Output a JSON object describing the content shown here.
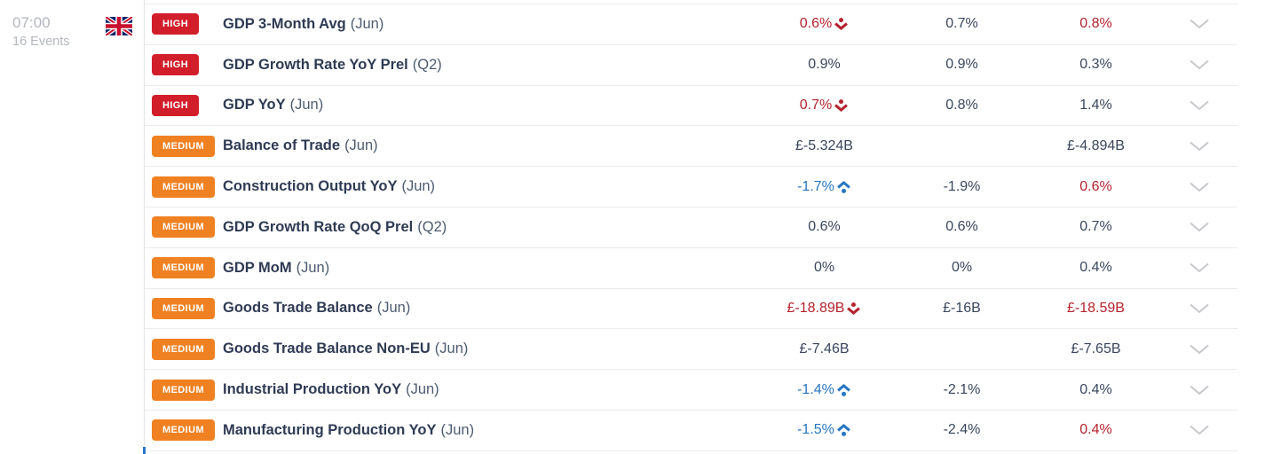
{
  "time_group": {
    "time": "07:00",
    "events_count": "16 Events",
    "country": "United Kingdom"
  },
  "colors": {
    "high_badge": "#d21e2b",
    "medium_badge": "#f08122",
    "value_dark": "#39465e",
    "value_red": "#b5232e",
    "value_blue": "#2776c4",
    "time_gray": "#b2b6be",
    "row_border": "#ececec",
    "accent_blue": "#2776c4",
    "flag_blue": "#012169",
    "flag_red": "#C8102E"
  },
  "rows": [
    {
      "importance": "HIGH",
      "name": "GDP 3-Month Avg",
      "period": "(Jun)",
      "actual": "0.6%",
      "actual_color": "red",
      "actual_indicator": "down",
      "consensus": "0.7%",
      "consensus_color": "dark",
      "previous": "0.8%",
      "previous_color": "red"
    },
    {
      "importance": "HIGH",
      "name": "GDP Growth Rate YoY Prel",
      "period": "(Q2)",
      "actual": "0.9%",
      "actual_color": "dark",
      "actual_indicator": "",
      "consensus": "0.9%",
      "consensus_color": "dark",
      "previous": "0.3%",
      "previous_color": "dark"
    },
    {
      "importance": "HIGH",
      "name": "GDP YoY",
      "period": "(Jun)",
      "actual": "0.7%",
      "actual_color": "red",
      "actual_indicator": "down",
      "consensus": "0.8%",
      "consensus_color": "dark",
      "previous": "1.4%",
      "previous_color": "dark"
    },
    {
      "importance": "MEDIUM",
      "name": "Balance of Trade",
      "period": "(Jun)",
      "actual": "£-5.324B",
      "actual_color": "dark",
      "actual_indicator": "",
      "consensus": "",
      "consensus_color": "dark",
      "previous": "£-4.894B",
      "previous_color": "dark"
    },
    {
      "importance": "MEDIUM",
      "name": "Construction Output YoY",
      "period": "(Jun)",
      "actual": "-1.7%",
      "actual_color": "blue",
      "actual_indicator": "up",
      "consensus": "-1.9%",
      "consensus_color": "dark",
      "previous": "0.6%",
      "previous_color": "red"
    },
    {
      "importance": "MEDIUM",
      "name": "GDP Growth Rate QoQ Prel",
      "period": "(Q2)",
      "actual": "0.6%",
      "actual_color": "dark",
      "actual_indicator": "",
      "consensus": "0.6%",
      "consensus_color": "dark",
      "previous": "0.7%",
      "previous_color": "dark"
    },
    {
      "importance": "MEDIUM",
      "name": "GDP MoM",
      "period": "(Jun)",
      "actual": "0%",
      "actual_color": "dark",
      "actual_indicator": "",
      "consensus": "0%",
      "consensus_color": "dark",
      "previous": "0.4%",
      "previous_color": "dark"
    },
    {
      "importance": "MEDIUM",
      "name": "Goods Trade Balance",
      "period": "(Jun)",
      "actual": "£-18.89B",
      "actual_color": "red",
      "actual_indicator": "down",
      "consensus": "£-16B",
      "consensus_color": "dark",
      "previous": "£-18.59B",
      "previous_color": "red"
    },
    {
      "importance": "MEDIUM",
      "name": "Goods Trade Balance Non-EU",
      "period": "(Jun)",
      "actual": "£-7.46B",
      "actual_color": "dark",
      "actual_indicator": "",
      "consensus": "",
      "consensus_color": "dark",
      "previous": "£-7.65B",
      "previous_color": "dark"
    },
    {
      "importance": "MEDIUM",
      "name": "Industrial Production YoY",
      "period": "(Jun)",
      "actual": "-1.4%",
      "actual_color": "blue",
      "actual_indicator": "up",
      "consensus": "-2.1%",
      "consensus_color": "dark",
      "previous": "0.4%",
      "previous_color": "dark"
    },
    {
      "importance": "MEDIUM",
      "name": "Manufacturing Production YoY",
      "period": "(Jun)",
      "actual": "-1.5%",
      "actual_color": "blue",
      "actual_indicator": "up",
      "consensus": "-2.4%",
      "consensus_color": "dark",
      "previous": "0.4%",
      "previous_color": "red"
    }
  ]
}
